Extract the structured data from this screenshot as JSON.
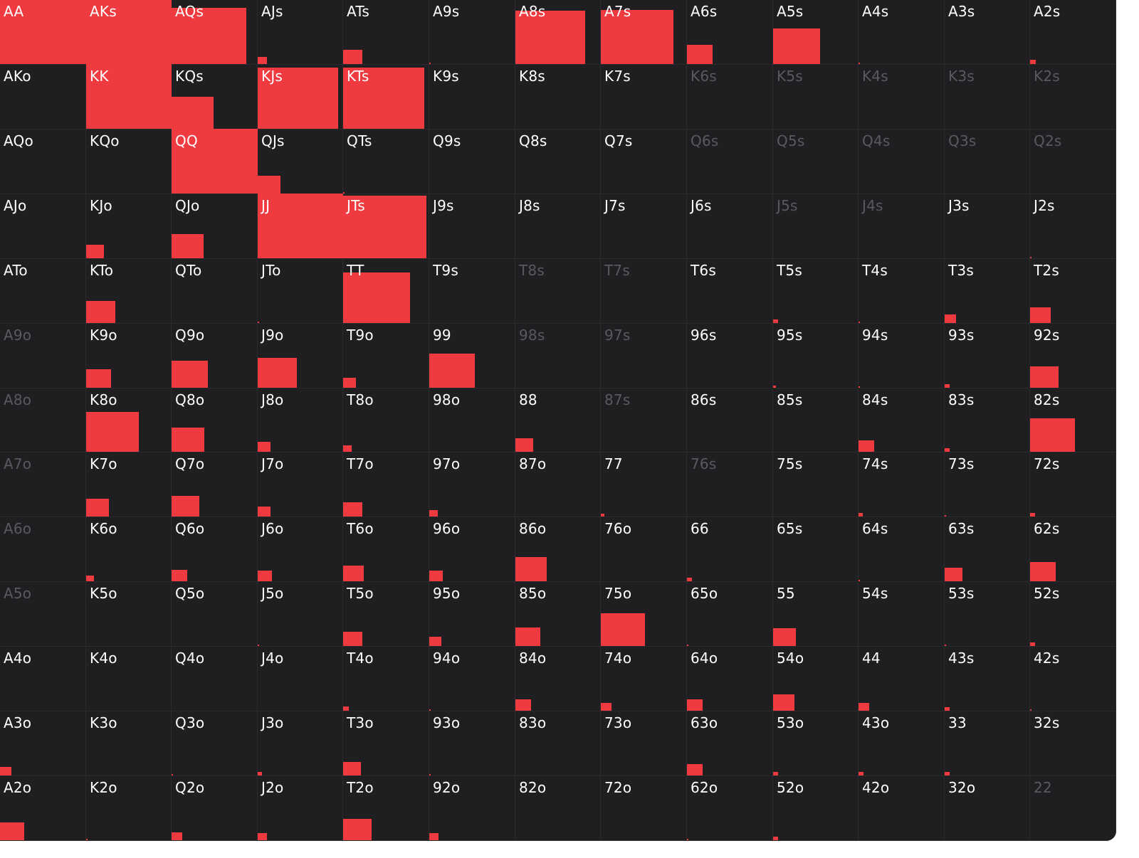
{
  "colors": {
    "background": "#1f1f21",
    "fill": "#ef3b3f",
    "label": "#ffffff",
    "label_dim": "#5a5a5e",
    "gridline": "#2b2b2e"
  },
  "chart_data": {
    "type": "heatmap",
    "title": "",
    "ranks": [
      "A",
      "K",
      "Q",
      "J",
      "T",
      "9",
      "8",
      "7",
      "6",
      "5",
      "4",
      "3",
      "2"
    ],
    "value_encoding": "fill fraction of cell (0-1), proportional width and height",
    "rows": [
      [
        {
          "hand": "AA",
          "value": 1.0
        },
        {
          "hand": "AKs",
          "value": 1.0
        },
        {
          "hand": "AQs",
          "value": 0.87
        },
        {
          "hand": "AJs",
          "value": 0.11
        },
        {
          "hand": "ATs",
          "value": 0.22
        },
        {
          "hand": "A9s",
          "value": 0.02
        },
        {
          "hand": "A8s",
          "value": 0.82
        },
        {
          "hand": "A7s",
          "value": 0.84
        },
        {
          "hand": "A6s",
          "value": 0.3
        },
        {
          "hand": "A5s",
          "value": 0.55
        },
        {
          "hand": "A4s",
          "value": 0.01
        },
        {
          "hand": "A3s",
          "value": 0.0
        },
        {
          "hand": "A2s",
          "value": 0.07
        }
      ],
      [
        {
          "hand": "AKo",
          "value": 0.0
        },
        {
          "hand": "KK",
          "value": 1.0
        },
        {
          "hand": "KQs",
          "value": 0.49
        },
        {
          "hand": "KJs",
          "value": 0.94
        },
        {
          "hand": "KTs",
          "value": 0.94
        },
        {
          "hand": "K9s",
          "value": 0.0
        },
        {
          "hand": "K8s",
          "value": 0.0
        },
        {
          "hand": "K7s",
          "value": 0.0
        },
        {
          "hand": "K6s",
          "value": 0.0,
          "dim": true
        },
        {
          "hand": "K5s",
          "value": 0.0,
          "dim": true
        },
        {
          "hand": "K4s",
          "value": 0.0,
          "dim": true
        },
        {
          "hand": "K3s",
          "value": 0.0,
          "dim": true
        },
        {
          "hand": "K2s",
          "value": 0.0,
          "dim": true
        }
      ],
      [
        {
          "hand": "AQo",
          "value": 0.0
        },
        {
          "hand": "KQo",
          "value": 0.0
        },
        {
          "hand": "QQ",
          "value": 1.0
        },
        {
          "hand": "QJs",
          "value": 0.27
        },
        {
          "hand": "QTs",
          "value": 0.01
        },
        {
          "hand": "Q9s",
          "value": 0.0
        },
        {
          "hand": "Q8s",
          "value": 0.0
        },
        {
          "hand": "Q7s",
          "value": 0.0
        },
        {
          "hand": "Q6s",
          "value": 0.0,
          "dim": true
        },
        {
          "hand": "Q5s",
          "value": 0.0,
          "dim": true
        },
        {
          "hand": "Q4s",
          "value": 0.0,
          "dim": true
        },
        {
          "hand": "Q3s",
          "value": 0.0,
          "dim": true
        },
        {
          "hand": "Q2s",
          "value": 0.0,
          "dim": true
        }
      ],
      [
        {
          "hand": "AJo",
          "value": 0.0
        },
        {
          "hand": "KJo",
          "value": 0.21
        },
        {
          "hand": "QJo",
          "value": 0.37
        },
        {
          "hand": "JJ",
          "value": 1.0
        },
        {
          "hand": "JTs",
          "value": 0.97
        },
        {
          "hand": "J9s",
          "value": 0.0
        },
        {
          "hand": "J8s",
          "value": 0.0
        },
        {
          "hand": "J7s",
          "value": 0.0
        },
        {
          "hand": "J6s",
          "value": 0.0
        },
        {
          "hand": "J5s",
          "value": 0.0,
          "dim": true
        },
        {
          "hand": "J4s",
          "value": 0.0,
          "dim": true
        },
        {
          "hand": "J3s",
          "value": 0.0
        },
        {
          "hand": "J2s",
          "value": 0.01
        }
      ],
      [
        {
          "hand": "ATo",
          "value": 0.0
        },
        {
          "hand": "KTo",
          "value": 0.34
        },
        {
          "hand": "QTo",
          "value": 0.0
        },
        {
          "hand": "JTo",
          "value": 0.01
        },
        {
          "hand": "TT",
          "value": 0.78
        },
        {
          "hand": "T9s",
          "value": 0.0
        },
        {
          "hand": "T8s",
          "value": 0.0,
          "dim": true
        },
        {
          "hand": "T7s",
          "value": 0.0,
          "dim": true
        },
        {
          "hand": "T6s",
          "value": 0.0
        },
        {
          "hand": "T5s",
          "value": 0.06
        },
        {
          "hand": "T4s",
          "value": 0.01
        },
        {
          "hand": "T3s",
          "value": 0.13
        },
        {
          "hand": "T2s",
          "value": 0.24
        }
      ],
      [
        {
          "hand": "A9o",
          "value": 0.0,
          "dim": true
        },
        {
          "hand": "K9o",
          "value": 0.29
        },
        {
          "hand": "Q9o",
          "value": 0.42
        },
        {
          "hand": "J9o",
          "value": 0.46
        },
        {
          "hand": "T9o",
          "value": 0.15
        },
        {
          "hand": "99",
          "value": 0.53
        },
        {
          "hand": "98s",
          "value": 0.0,
          "dim": true
        },
        {
          "hand": "97s",
          "value": 0.0,
          "dim": true
        },
        {
          "hand": "96s",
          "value": 0.0
        },
        {
          "hand": "95s",
          "value": 0.03
        },
        {
          "hand": "94s",
          "value": 0.01
        },
        {
          "hand": "93s",
          "value": 0.06
        },
        {
          "hand": "92s",
          "value": 0.33
        }
      ],
      [
        {
          "hand": "A8o",
          "value": 0.0,
          "dim": true
        },
        {
          "hand": "K8o",
          "value": 0.62
        },
        {
          "hand": "Q8o",
          "value": 0.38
        },
        {
          "hand": "J8o",
          "value": 0.15
        },
        {
          "hand": "T8o",
          "value": 0.1
        },
        {
          "hand": "98o",
          "value": 0.0
        },
        {
          "hand": "88",
          "value": 0.21
        },
        {
          "hand": "87s",
          "value": 0.0,
          "dim": true
        },
        {
          "hand": "86s",
          "value": 0.0
        },
        {
          "hand": "85s",
          "value": 0.0
        },
        {
          "hand": "84s",
          "value": 0.18
        },
        {
          "hand": "83s",
          "value": 0.06
        },
        {
          "hand": "82s",
          "value": 0.52
        }
      ],
      [
        {
          "hand": "A7o",
          "value": 0.0,
          "dim": true
        },
        {
          "hand": "K7o",
          "value": 0.27
        },
        {
          "hand": "Q7o",
          "value": 0.32
        },
        {
          "hand": "J7o",
          "value": 0.15
        },
        {
          "hand": "T7o",
          "value": 0.22
        },
        {
          "hand": "97o",
          "value": 0.1
        },
        {
          "hand": "87o",
          "value": 0.0
        },
        {
          "hand": "77",
          "value": 0.04
        },
        {
          "hand": "76s",
          "value": 0.0,
          "dim": true
        },
        {
          "hand": "75s",
          "value": 0.0
        },
        {
          "hand": "74s",
          "value": 0.05
        },
        {
          "hand": "73s",
          "value": 0.01
        },
        {
          "hand": "72s",
          "value": 0.06
        }
      ],
      [
        {
          "hand": "A6o",
          "value": 0.0,
          "dim": true
        },
        {
          "hand": "K6o",
          "value": 0.09
        },
        {
          "hand": "Q6o",
          "value": 0.18
        },
        {
          "hand": "J6o",
          "value": 0.17
        },
        {
          "hand": "T6o",
          "value": 0.24
        },
        {
          "hand": "96o",
          "value": 0.16
        },
        {
          "hand": "86o",
          "value": 0.37
        },
        {
          "hand": "76o",
          "value": 0.0
        },
        {
          "hand": "66",
          "value": 0.06
        },
        {
          "hand": "65s",
          "value": 0.0
        },
        {
          "hand": "64s",
          "value": 0.01
        },
        {
          "hand": "63s",
          "value": 0.21
        },
        {
          "hand": "62s",
          "value": 0.3
        }
      ],
      [
        {
          "hand": "A5o",
          "value": 0.0,
          "dim": true
        },
        {
          "hand": "K5o",
          "value": 0.0
        },
        {
          "hand": "Q5o",
          "value": 0.0
        },
        {
          "hand": "J5o",
          "value": 0.01
        },
        {
          "hand": "T5o",
          "value": 0.22
        },
        {
          "hand": "95o",
          "value": 0.14
        },
        {
          "hand": "85o",
          "value": 0.29
        },
        {
          "hand": "75o",
          "value": 0.51
        },
        {
          "hand": "65o",
          "value": 0.02
        },
        {
          "hand": "55",
          "value": 0.27
        },
        {
          "hand": "54s",
          "value": 0.0
        },
        {
          "hand": "53s",
          "value": 0.02
        },
        {
          "hand": "52s",
          "value": 0.06
        }
      ],
      [
        {
          "hand": "A4o",
          "value": 0.0
        },
        {
          "hand": "K4o",
          "value": 0.0
        },
        {
          "hand": "Q4o",
          "value": 0.0
        },
        {
          "hand": "J4o",
          "value": 0.0
        },
        {
          "hand": "T4o",
          "value": 0.07
        },
        {
          "hand": "94o",
          "value": 0.01
        },
        {
          "hand": "84o",
          "value": 0.18
        },
        {
          "hand": "74o",
          "value": 0.12
        },
        {
          "hand": "64o",
          "value": 0.18
        },
        {
          "hand": "54o",
          "value": 0.25
        },
        {
          "hand": "44",
          "value": 0.12
        },
        {
          "hand": "43s",
          "value": 0.06
        },
        {
          "hand": "42s",
          "value": 0.01
        }
      ],
      [
        {
          "hand": "A3o",
          "value": 0.13
        },
        {
          "hand": "K3o",
          "value": 0.0
        },
        {
          "hand": "Q3o",
          "value": 0.02
        },
        {
          "hand": "J3o",
          "value": 0.05
        },
        {
          "hand": "T3o",
          "value": 0.21
        },
        {
          "hand": "93o",
          "value": 0.02
        },
        {
          "hand": "83o",
          "value": 0.0
        },
        {
          "hand": "73o",
          "value": 0.0
        },
        {
          "hand": "63o",
          "value": 0.18
        },
        {
          "hand": "53o",
          "value": 0.06
        },
        {
          "hand": "43o",
          "value": 0.06
        },
        {
          "hand": "33",
          "value": 0.06
        },
        {
          "hand": "32s",
          "value": 0.0
        }
      ],
      [
        {
          "hand": "A2o",
          "value": 0.28
        },
        {
          "hand": "K2o",
          "value": 0.01
        },
        {
          "hand": "Q2o",
          "value": 0.12
        },
        {
          "hand": "J2o",
          "value": 0.11
        },
        {
          "hand": "T2o",
          "value": 0.33
        },
        {
          "hand": "92o",
          "value": 0.11
        },
        {
          "hand": "82o",
          "value": 0.0
        },
        {
          "hand": "72o",
          "value": 0.0
        },
        {
          "hand": "62o",
          "value": 0.01
        },
        {
          "hand": "52o",
          "value": 0.06
        },
        {
          "hand": "42o",
          "value": 0.0
        },
        {
          "hand": "32o",
          "value": 0.0
        },
        {
          "hand": "22",
          "value": 0.0,
          "dim": true
        }
      ]
    ]
  }
}
